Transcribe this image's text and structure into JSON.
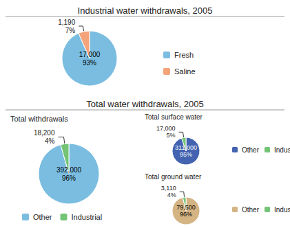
{
  "chart_data": [
    {
      "type": "pie",
      "title": "Industrial water withdrawals, 2005",
      "categories": [
        "Fresh",
        "Saline"
      ],
      "values": [
        17000,
        1190
      ],
      "value_labels": [
        "17,000\n93%",
        "1,190\n7%"
      ],
      "colors": [
        "#7abde0",
        "#f4a37a"
      ],
      "data_labels": true,
      "legend": "right"
    },
    {
      "type": "pie",
      "title": "Total water withdrawals, 2005",
      "subtitle": "Total withdrawals",
      "categories": [
        "Other",
        "Industrial"
      ],
      "values": [
        392000,
        18200
      ],
      "value_labels": [
        "392,000\n96%",
        "18,200\n4%"
      ],
      "colors": [
        "#7abde0",
        "#74c476"
      ],
      "data_labels": true,
      "legend": "bottom"
    },
    {
      "type": "pie",
      "title": "Total surface water",
      "categories": [
        "Other",
        "Industrial"
      ],
      "values": [
        311000,
        17000
      ],
      "value_labels": [
        "311,000\n95%",
        "17,000\n5%"
      ],
      "colors": [
        "#4363b0",
        "#74c476"
      ],
      "data_labels": true,
      "legend": "right"
    },
    {
      "type": "pie",
      "title": "Total ground water",
      "categories": [
        "Other",
        "Industrial"
      ],
      "values": [
        79500,
        3110
      ],
      "value_labels": [
        "79,500\n96%",
        "3,110\n4%"
      ],
      "colors": [
        "#d4b483",
        "#74c476"
      ],
      "data_labels": true,
      "legend": "right"
    }
  ]
}
